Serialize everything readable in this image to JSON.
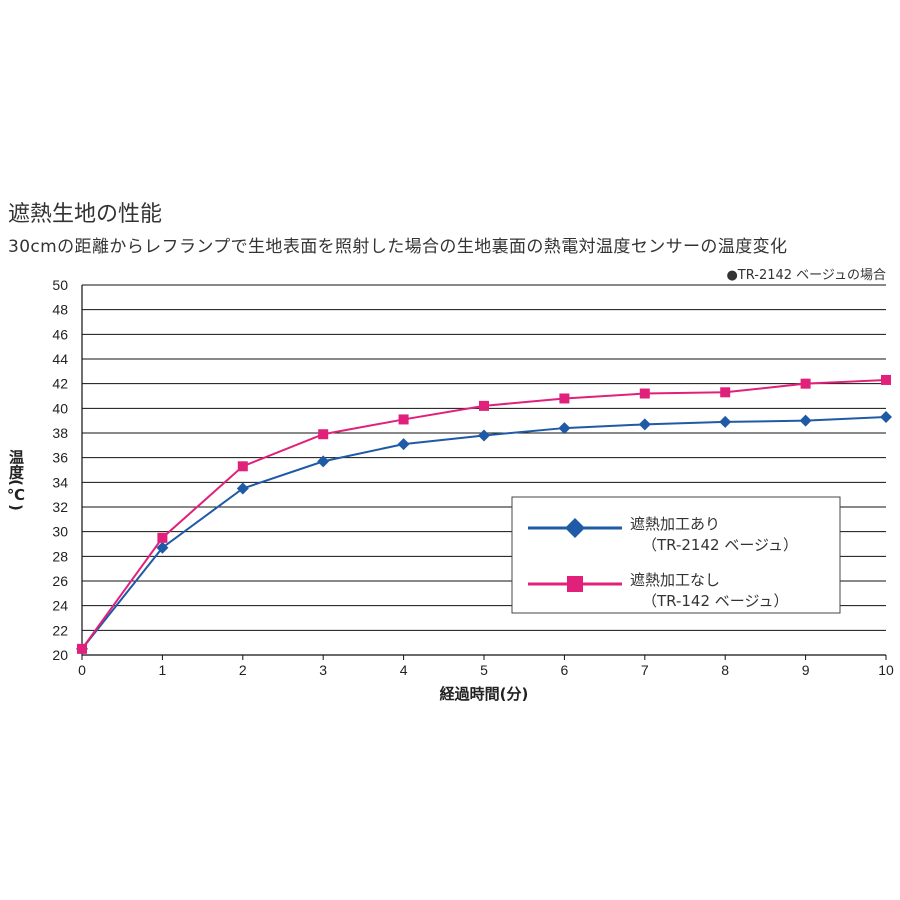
{
  "header": {
    "title": "遮熱生地の性能",
    "subtitle": "30cmの距離からレフランプで生地表面を照射した場合の生地裏面の熱電対温度センサーの温度変化",
    "note": "●TR-2142 ベージュの場合"
  },
  "chart_data": {
    "type": "line",
    "xlabel": "経過時間(分)",
    "ylabel": "温度(℃)",
    "x": [
      0,
      1,
      2,
      3,
      4,
      5,
      6,
      7,
      8,
      9,
      10
    ],
    "xlim": [
      0,
      10
    ],
    "ylim": [
      20,
      50
    ],
    "yticks": [
      20,
      22,
      24,
      26,
      28,
      30,
      32,
      34,
      36,
      38,
      40,
      42,
      44,
      46,
      48,
      50
    ],
    "grid": "horizontal",
    "legend_position": "lower-right",
    "series": [
      {
        "name": "遮熱加工あり",
        "name_line2": "（TR-2142 ベージュ）",
        "color": "#1f5aa6",
        "marker": "diamond",
        "values": [
          20.5,
          28.7,
          33.5,
          35.7,
          37.1,
          37.8,
          38.4,
          38.7,
          38.9,
          39.0,
          39.3
        ]
      },
      {
        "name": "遮熱加工なし",
        "name_line2": "（TR-142 ベージュ）",
        "color": "#e0207a",
        "marker": "square",
        "values": [
          20.5,
          29.5,
          35.3,
          37.9,
          39.1,
          40.2,
          40.8,
          41.2,
          41.3,
          42.0,
          42.3
        ]
      }
    ]
  }
}
